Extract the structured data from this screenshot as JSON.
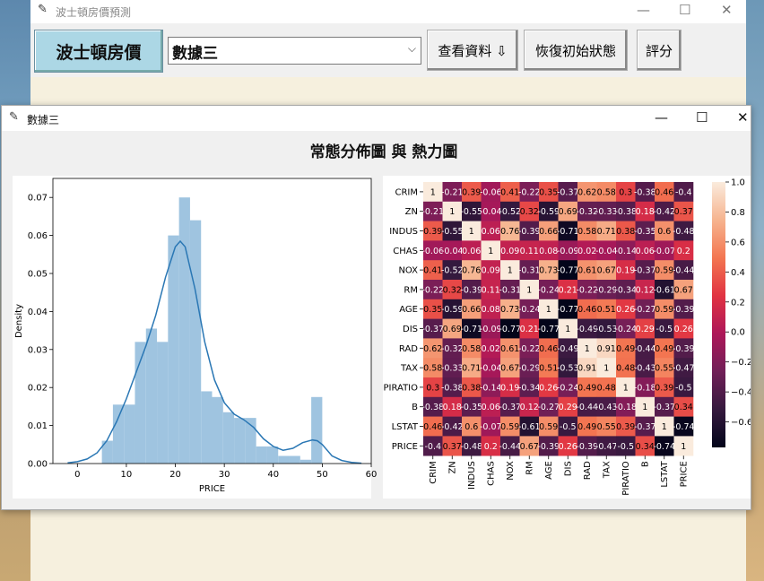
{
  "main_window": {
    "title": "波士頓房價預測",
    "brand_label": "波士頓房價",
    "dataset_select": {
      "value": "數據三"
    },
    "view_data_button": "查看資料 ⇩",
    "reset_button": "恢復初始狀態",
    "score_button": "評分"
  },
  "popup": {
    "title": "數據三",
    "figure_title": "常態分佈圖 與 熱力圖"
  },
  "chart_data": [
    {
      "type": "bar",
      "subtype": "histogram_with_kde",
      "xlabel": "PRICE",
      "ylabel": "Density",
      "xlim": [
        -5,
        60
      ],
      "ylim": [
        0,
        0.075
      ],
      "xticks": [
        0,
        10,
        20,
        30,
        40,
        50,
        60
      ],
      "yticks": [
        "0.00",
        "0.01",
        "0.02",
        "0.03",
        "0.04",
        "0.05",
        "0.06",
        "0.07"
      ],
      "bins": [
        {
          "x0": 5,
          "x1": 7.25,
          "y": 0.006
        },
        {
          "x0": 7.25,
          "x1": 9.5,
          "y": 0.0155
        },
        {
          "x0": 9.5,
          "x1": 11.75,
          "y": 0.0155
        },
        {
          "x0": 11.75,
          "x1": 14,
          "y": 0.032
        },
        {
          "x0": 14,
          "x1": 16.25,
          "y": 0.0355
        },
        {
          "x0": 16.25,
          "x1": 18.5,
          "y": 0.032
        },
        {
          "x0": 18.5,
          "x1": 20.75,
          "y": 0.06
        },
        {
          "x0": 20.75,
          "x1": 23,
          "y": 0.07
        },
        {
          "x0": 23,
          "x1": 25.25,
          "y": 0.064
        },
        {
          "x0": 25.25,
          "x1": 27.5,
          "y": 0.019
        },
        {
          "x0": 27.5,
          "x1": 29.75,
          "y": 0.0175
        },
        {
          "x0": 29.75,
          "x1": 32,
          "y": 0.0135
        },
        {
          "x0": 32,
          "x1": 34.25,
          "y": 0.012
        },
        {
          "x0": 34.25,
          "x1": 36.5,
          "y": 0.012
        },
        {
          "x0": 36.5,
          "x1": 38.75,
          "y": 0.0045
        },
        {
          "x0": 38.75,
          "x1": 41,
          "y": 0.0045
        },
        {
          "x0": 41,
          "x1": 43.25,
          "y": 0.002
        },
        {
          "x0": 43.25,
          "x1": 45.5,
          "y": 0.002
        },
        {
          "x0": 45.5,
          "x1": 47.75,
          "y": 0.001
        },
        {
          "x0": 47.75,
          "x1": 50,
          "y": 0.0175
        }
      ],
      "kde": {
        "x": [
          -2,
          0,
          2,
          4,
          6,
          8,
          10,
          12,
          14,
          16,
          18,
          20,
          21,
          22,
          24,
          26,
          28,
          30,
          32,
          34,
          36,
          38,
          40,
          42,
          44,
          46,
          48,
          49,
          50,
          52,
          54,
          56,
          58
        ],
        "y": [
          0.0002,
          0.0005,
          0.0012,
          0.0028,
          0.006,
          0.011,
          0.017,
          0.024,
          0.031,
          0.039,
          0.049,
          0.057,
          0.0585,
          0.057,
          0.046,
          0.032,
          0.022,
          0.016,
          0.013,
          0.0115,
          0.0095,
          0.0065,
          0.0045,
          0.0035,
          0.004,
          0.0055,
          0.0062,
          0.006,
          0.005,
          0.002,
          0.0008,
          0.0003,
          0.0001
        ]
      },
      "colors": {
        "bars": "#9fc4e0",
        "kde": "#2a77b4"
      }
    },
    {
      "type": "heatmap",
      "rows": [
        "CRIM",
        "ZN",
        "INDUS",
        "CHAS",
        "NOX",
        "RM",
        "AGE",
        "DIS",
        "RAD",
        "TAX",
        "PIRATIO",
        "B",
        "LSTAT",
        "PRICE"
      ],
      "columns": [
        "CRIM",
        "ZN",
        "INDUS",
        "CHAS",
        "NOX",
        "RM",
        "AGE",
        "DIS",
        "RAD",
        "TAX",
        "PIRATIO",
        "B",
        "LSTAT",
        "PRICE"
      ],
      "cell_labels": [
        [
          "1",
          "-0.21",
          "0.39",
          "-0.06",
          "0.41",
          "-0.22",
          "0.35",
          "-0.37",
          "0.62",
          "0.58",
          "0.3",
          "-0.38",
          "0.46",
          "-0.4"
        ],
        [
          "-0.21",
          "1",
          "-0.55",
          "-0.04",
          "-0.52",
          "0.32",
          "-0.59",
          "0.69",
          "-0.32",
          "-0.33",
          "-0.38",
          "0.18",
          "-0.42",
          "0.37"
        ],
        [
          "0.39",
          "-0.55",
          "1",
          "0.06",
          "0.76",
          "-0.39",
          "0.66",
          "-0.71",
          "0.58",
          "0.71",
          "0.38",
          "-0.35",
          "0.6",
          "-0.48"
        ],
        [
          "-0.06",
          "-0.04",
          "0.06",
          "1",
          "0.09",
          "0.11",
          "0.08",
          "-0.09",
          "0.02",
          "-0.04",
          "-0.14",
          "0.06",
          "-0.07",
          "0.2"
        ],
        [
          "0.41",
          "-0.52",
          "0.76",
          "0.09",
          "1",
          "-0.31",
          "0.73",
          "-0.77",
          "0.61",
          "0.67",
          "0.19",
          "-0.37",
          "0.59",
          "-0.44"
        ],
        [
          "-0.22",
          "0.32",
          "-0.39",
          "0.11",
          "-0.31",
          "1",
          "-0.24",
          "0.21",
          "-0.22",
          "-0.29",
          "-0.34",
          "0.12",
          "-0.61",
          "0.67"
        ],
        [
          "0.35",
          "-0.59",
          "0.66",
          "0.08",
          "0.73",
          "-0.24",
          "1",
          "-0.77",
          "0.46",
          "0.51",
          "0.26",
          "-0.27",
          "0.59",
          "-0.39"
        ],
        [
          "-0.37",
          "0.69",
          "-0.71",
          "-0.09",
          "-0.77",
          "0.21",
          "-0.77",
          "1",
          "-0.49",
          "-0.53",
          "-0.24",
          "0.29",
          "-0.5",
          "0.26"
        ],
        [
          "0.62",
          "-0.32",
          "0.58",
          "0.02",
          "0.61",
          "-0.22",
          "0.46",
          "-0.49",
          "1",
          "0.91",
          "0.49",
          "-0.44",
          "0.49",
          "-0.39"
        ],
        [
          "0.58",
          "-0.33",
          "0.71",
          "-0.04",
          "0.67",
          "-0.29",
          "0.51",
          "-0.53",
          "0.91",
          "1",
          "0.48",
          "-0.43",
          "0.55",
          "-0.47"
        ],
        [
          "0.3",
          "-0.38",
          "0.38",
          "-0.14",
          "0.19",
          "-0.34",
          "0.26",
          "-0.24",
          "0.49",
          "0.48",
          "1",
          "-0.18",
          "0.39",
          "-0.5"
        ],
        [
          "-0.38",
          "0.18",
          "-0.35",
          "0.06",
          "-0.37",
          "0.12",
          "-0.27",
          "0.29",
          "-0.44",
          "-0.43",
          "-0.18",
          "1",
          "-0.37",
          "0.34"
        ],
        [
          "0.46",
          "-0.42",
          "0.6",
          "-0.07",
          "0.59",
          "-0.61",
          "0.59",
          "-0.5",
          "0.49",
          "0.55",
          "0.39",
          "-0.37",
          "1",
          "-0.74"
        ],
        [
          "-0.4",
          "0.37",
          "-0.48",
          "0.2",
          "-0.44",
          "0.67",
          "-0.39",
          "0.26",
          "-0.39",
          "-0.47",
          "-0.5",
          "0.34",
          "-0.74",
          "1"
        ]
      ],
      "colorbar": {
        "range": [
          -0.77,
          1.0
        ],
        "ticks": [
          "1.0",
          "0.8",
          "0.6",
          "0.4",
          "0.2",
          "0.0",
          "−0.2",
          "−0.4",
          "−0.6"
        ],
        "tick_values": [
          1.0,
          0.8,
          0.6,
          0.4,
          0.2,
          0.0,
          -0.2,
          -0.4,
          -0.6
        ],
        "colormap": "rocket",
        "stops": [
          "#03051a",
          "#35193e",
          "#701f57",
          "#ad1759",
          "#e13342",
          "#f37651",
          "#f6b48f",
          "#faebdd"
        ]
      }
    }
  ]
}
